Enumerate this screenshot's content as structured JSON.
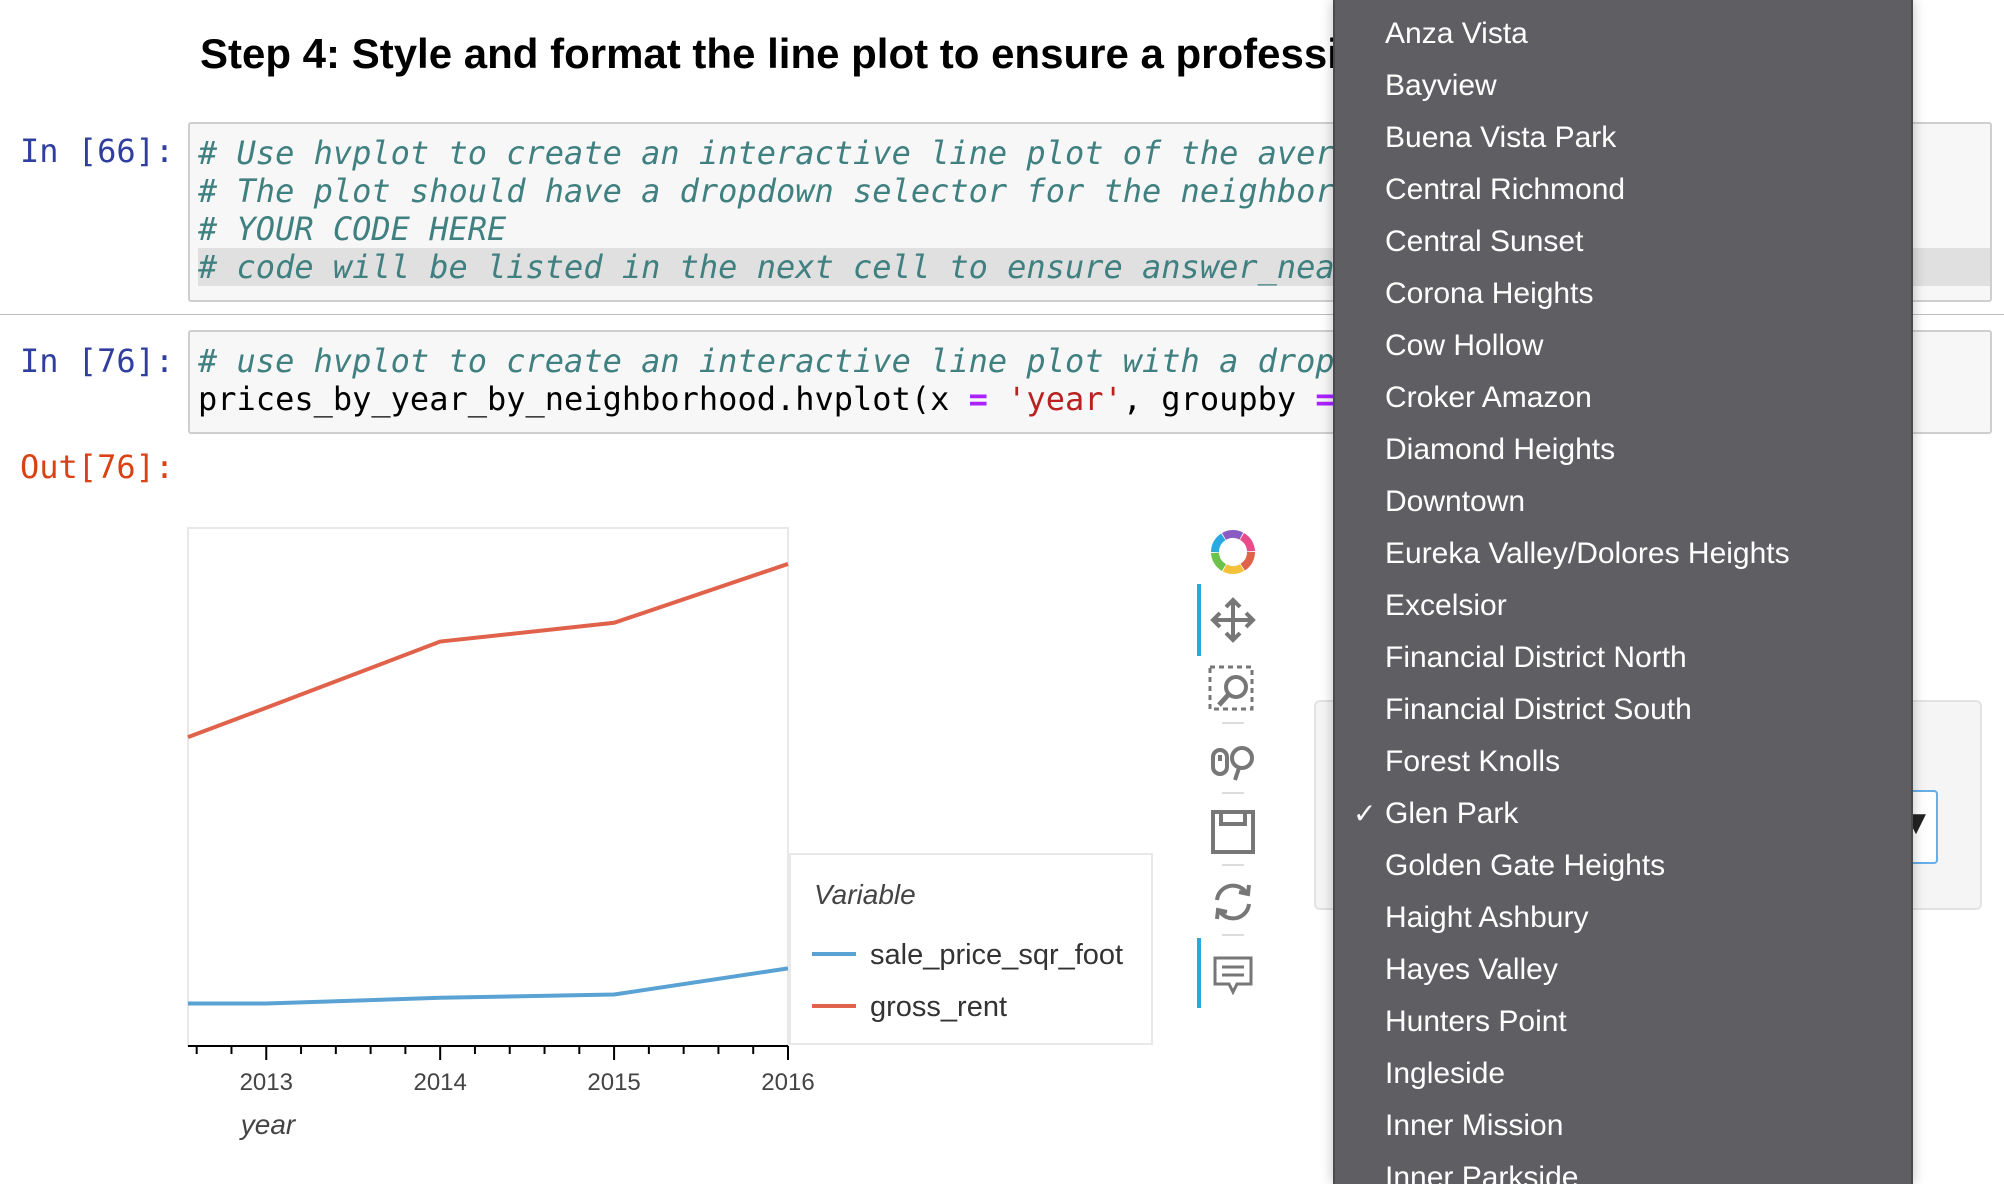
{
  "heading": "Step 4: Style and format the line plot to ensure a professi",
  "cells": [
    {
      "prompt": "In [66]:",
      "lines": [
        "# Use hvplot to create an interactive line plot of the aver",
        "# The plot should have a dropdown selector for the neighbor",
        "# YOUR CODE HERE",
        "# code will be listed in the next cell to ensure answer_nea"
      ]
    },
    {
      "prompt": "In [76]:",
      "comment": "# use hvplot to create an interactive line plot with a drop",
      "code_tokens": [
        "prices_by_year_by_neighborhood.hvplot(x ",
        "=",
        " ",
        "'year'",
        ", groupby ",
        "="
      ]
    }
  ],
  "out_prompt": "Out[76]:",
  "chart_data": {
    "type": "line",
    "x": [
      2012.55,
      2013,
      2014,
      2015,
      2016
    ],
    "xticks": [
      "2013",
      "2014",
      "2015",
      "2016"
    ],
    "xlabel": "year",
    "ylabel": "",
    "series": [
      {
        "name": "sale_price_sqr_foot",
        "color": "#5aa2d4",
        "values": [
          110,
          110,
          145,
          165,
          325
        ]
      },
      {
        "name": "gross_rent",
        "color": "#e1624a",
        "values": [
          1740,
          1920,
          2325,
          2440,
          2800
        ]
      }
    ],
    "ylim": [
      -150,
      3020
    ],
    "legend": {
      "title": "Variable",
      "placement": "right"
    }
  },
  "toolbar": {
    "icons": [
      "bokeh-logo-icon",
      "pan-icon",
      "box-zoom-icon",
      "wheel-zoom-icon",
      "save-icon",
      "reset-icon",
      "hover-icon"
    ]
  },
  "dropdown": {
    "items": [
      "Anza Vista",
      "Bayview",
      "Buena Vista Park",
      "Central Richmond",
      "Central Sunset",
      "Corona Heights",
      "Cow Hollow",
      "Croker Amazon",
      "Diamond Heights",
      "Downtown",
      "Eureka Valley/Dolores Heights",
      "Excelsior",
      "Financial District North",
      "Financial District South",
      "Forest Knolls",
      "Glen Park",
      "Golden Gate Heights",
      "Haight Ashbury",
      "Hayes Valley",
      "Hunters Point",
      "Ingleside",
      "Inner Mission",
      "Inner Parkside"
    ],
    "selected": "Glen Park",
    "check_mark": "✓"
  }
}
